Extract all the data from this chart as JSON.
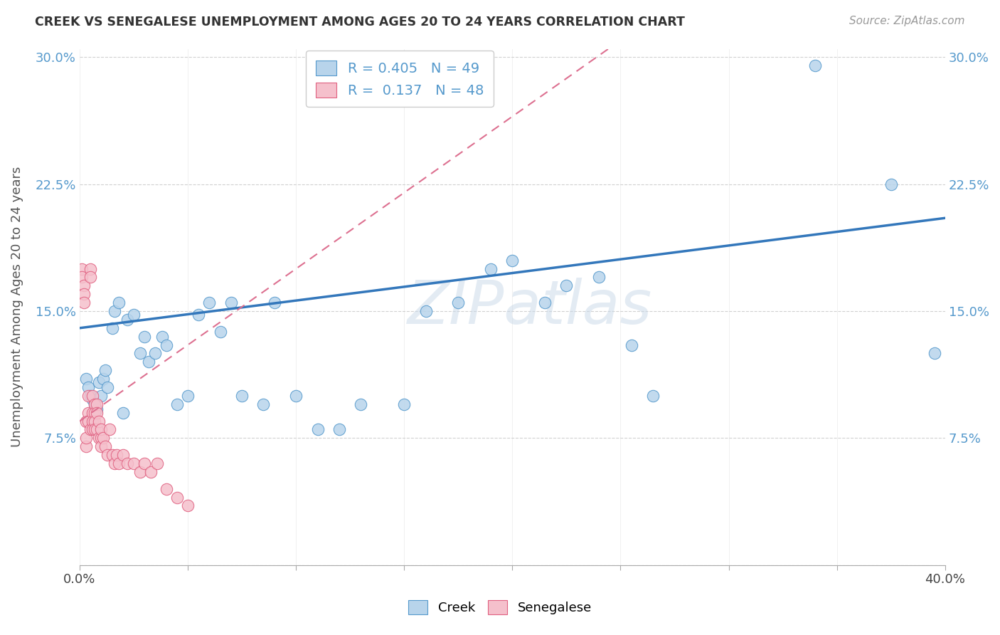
{
  "title": "CREEK VS SENEGALESE UNEMPLOYMENT AMONG AGES 20 TO 24 YEARS CORRELATION CHART",
  "source": "Source: ZipAtlas.com",
  "ylabel": "Unemployment Among Ages 20 to 24 years",
  "xlim": [
    0.0,
    0.4
  ],
  "ylim": [
    0.0,
    0.305
  ],
  "yticks": [
    0.0,
    0.075,
    0.15,
    0.225,
    0.3
  ],
  "ytick_labels": [
    "",
    "7.5%",
    "15.0%",
    "22.5%",
    "30.0%"
  ],
  "xticks": [
    0.0,
    0.05,
    0.1,
    0.15,
    0.2,
    0.25,
    0.3,
    0.35,
    0.4
  ],
  "xtick_labels": [
    "0.0%",
    "",
    "",
    "",
    "",
    "",
    "",
    "",
    "40.0%"
  ],
  "creek_R": 0.405,
  "creek_N": 49,
  "senegalese_R": 0.137,
  "senegalese_N": 48,
  "creek_face_color": "#b8d4eb",
  "creek_edge_color": "#5599cc",
  "senegalese_face_color": "#f5c0cc",
  "senegalese_edge_color": "#e06080",
  "trend_creek_color": "#3377bb",
  "trend_senegalese_color": "#dd7090",
  "background_color": "#ffffff",
  "grid_color": "#cccccc",
  "title_color": "#333333",
  "axis_color": "#5599cc",
  "legend_label_creek": "Creek",
  "legend_label_senegalese": "Senegalese",
  "creek_x": [
    0.003,
    0.004,
    0.005,
    0.006,
    0.007,
    0.008,
    0.009,
    0.01,
    0.011,
    0.012,
    0.013,
    0.015,
    0.016,
    0.018,
    0.02,
    0.022,
    0.025,
    0.028,
    0.03,
    0.032,
    0.035,
    0.038,
    0.04,
    0.045,
    0.05,
    0.055,
    0.06,
    0.065,
    0.07,
    0.075,
    0.085,
    0.09,
    0.1,
    0.11,
    0.12,
    0.13,
    0.15,
    0.16,
    0.175,
    0.19,
    0.2,
    0.215,
    0.225,
    0.24,
    0.255,
    0.265,
    0.34,
    0.375,
    0.395
  ],
  "creek_y": [
    0.11,
    0.105,
    0.1,
    0.098,
    0.095,
    0.092,
    0.108,
    0.1,
    0.11,
    0.115,
    0.105,
    0.14,
    0.15,
    0.155,
    0.09,
    0.145,
    0.148,
    0.125,
    0.135,
    0.12,
    0.125,
    0.135,
    0.13,
    0.095,
    0.1,
    0.148,
    0.155,
    0.138,
    0.155,
    0.1,
    0.095,
    0.155,
    0.1,
    0.08,
    0.08,
    0.095,
    0.095,
    0.15,
    0.155,
    0.175,
    0.18,
    0.155,
    0.165,
    0.17,
    0.13,
    0.1,
    0.295,
    0.225,
    0.125
  ],
  "senegalese_x": [
    0.001,
    0.001,
    0.002,
    0.002,
    0.002,
    0.003,
    0.003,
    0.003,
    0.004,
    0.004,
    0.004,
    0.005,
    0.005,
    0.005,
    0.006,
    0.006,
    0.006,
    0.006,
    0.007,
    0.007,
    0.007,
    0.007,
    0.008,
    0.008,
    0.008,
    0.009,
    0.009,
    0.01,
    0.01,
    0.01,
    0.011,
    0.012,
    0.013,
    0.014,
    0.015,
    0.016,
    0.017,
    0.018,
    0.02,
    0.022,
    0.025,
    0.028,
    0.03,
    0.033,
    0.036,
    0.04,
    0.045,
    0.05
  ],
  "senegalese_y": [
    0.175,
    0.17,
    0.165,
    0.16,
    0.155,
    0.085,
    0.07,
    0.075,
    0.1,
    0.09,
    0.085,
    0.175,
    0.17,
    0.08,
    0.1,
    0.09,
    0.085,
    0.08,
    0.095,
    0.09,
    0.085,
    0.08,
    0.095,
    0.09,
    0.08,
    0.085,
    0.075,
    0.075,
    0.08,
    0.07,
    0.075,
    0.07,
    0.065,
    0.08,
    0.065,
    0.06,
    0.065,
    0.06,
    0.065,
    0.06,
    0.06,
    0.055,
    0.06,
    0.055,
    0.06,
    0.045,
    0.04,
    0.035
  ]
}
